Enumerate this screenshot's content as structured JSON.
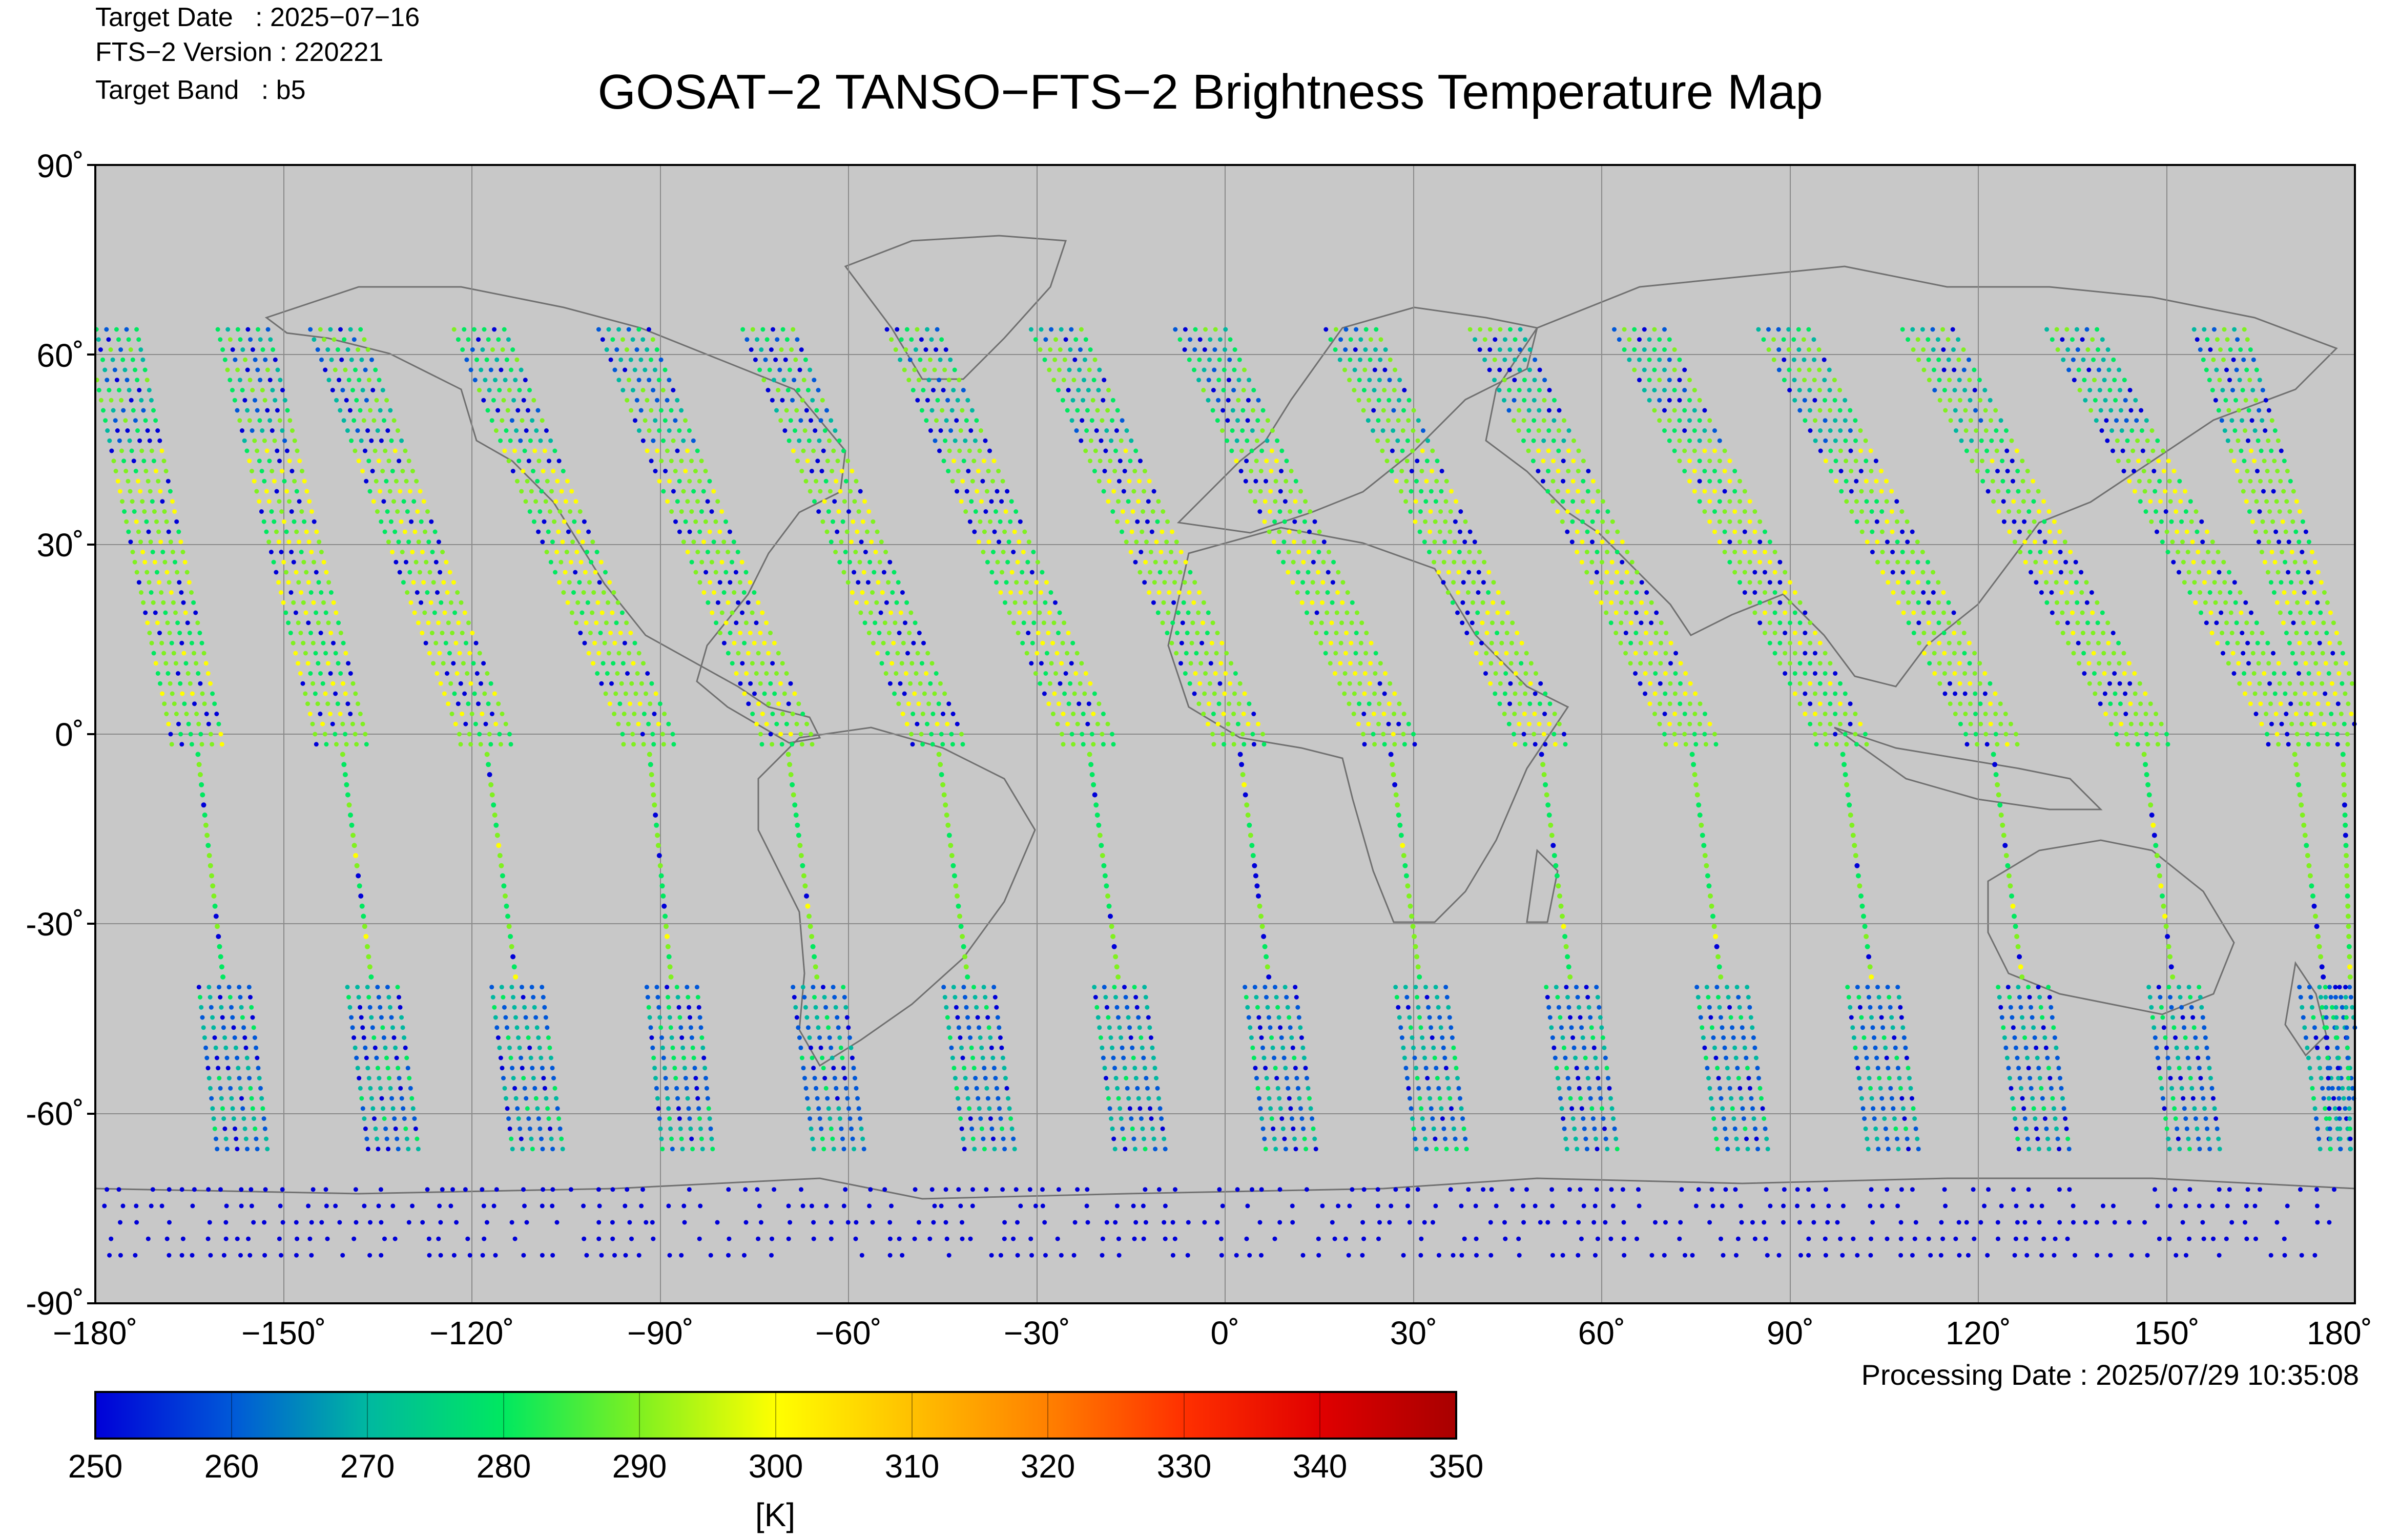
{
  "header": {
    "target_date": "Target Date   : 2025−07−16",
    "fts_version": "FTS−2 Version : 220221",
    "target_band": "Target Band   : b5",
    "title": "GOSAT−2 TANSO−FTS−2 Brightness Temperature Map"
  },
  "map": {
    "lat_labels": [
      "90˚",
      "60˚",
      "30˚",
      "0˚",
      "-30˚",
      "-60˚",
      "-90˚"
    ],
    "lon_labels": [
      "−180˚",
      "−150˚",
      "−120˚",
      "−90˚",
      "−60˚",
      "−30˚",
      "0˚",
      "30˚",
      "60˚",
      "90˚",
      "120˚",
      "150˚",
      "180˚"
    ],
    "ocean_color": "#c8c8c8",
    "coastline_color": "#707070",
    "grid_color": "#8a8a8a"
  },
  "processing_date": "Processing Date : 2025/07/29 10:35:08",
  "colorbar": {
    "ticks": [
      "250",
      "260",
      "270",
      "280",
      "290",
      "300",
      "310",
      "320",
      "330",
      "340",
      "350"
    ],
    "unit": "[K]",
    "min": 250,
    "max": 350,
    "colors": [
      "#0000d8",
      "#0058d8",
      "#00b8a0",
      "#00e860",
      "#80f020",
      "#ffff00",
      "#ffc000",
      "#ff8000",
      "#ff3000",
      "#e00000",
      "#a80000"
    ]
  },
  "chart_data": {
    "type": "scatter",
    "title": "GOSAT−2 TANSO−FTS−2 Brightness Temperature Map",
    "xlabel": "",
    "ylabel": "",
    "xlim": [
      -180,
      180
    ],
    "ylim": [
      -90,
      90
    ],
    "value_unit": "K",
    "value_range": [
      250,
      350
    ],
    "swaths": [
      {
        "lon_north": -177,
        "lon_equator": -164,
        "lon_south": -157
      },
      {
        "lon_north": -156,
        "lon_equator": -141,
        "lon_south": -133
      },
      {
        "lon_north": -141,
        "lon_equator": -118,
        "lon_south": -110
      },
      {
        "lon_north": -118,
        "lon_equator": -92,
        "lon_south": -86
      },
      {
        "lon_north": -95,
        "lon_equator": -70,
        "lon_south": -62
      },
      {
        "lon_north": -72,
        "lon_equator": -46,
        "lon_south": -38
      },
      {
        "lon_north": -49,
        "lon_equator": -22,
        "lon_south": -14
      },
      {
        "lon_north": -26,
        "lon_equator": 2,
        "lon_south": 10
      },
      {
        "lon_north": -3,
        "lon_equator": 26,
        "lon_south": 34
      },
      {
        "lon_north": 21,
        "lon_equator": 50,
        "lon_south": 58
      },
      {
        "lon_north": 44,
        "lon_equator": 74,
        "lon_south": 82
      },
      {
        "lon_north": 67,
        "lon_equator": 98,
        "lon_south": 106
      },
      {
        "lon_north": 90,
        "lon_equator": 122,
        "lon_south": 130
      },
      {
        "lon_north": 113,
        "lon_equator": 146,
        "lon_south": 154
      },
      {
        "lon_north": 136,
        "lon_equator": 170,
        "lon_south": 178
      },
      {
        "lon_north": 159,
        "lon_equator": 178,
        "lon_south": 180
      }
    ]
  }
}
